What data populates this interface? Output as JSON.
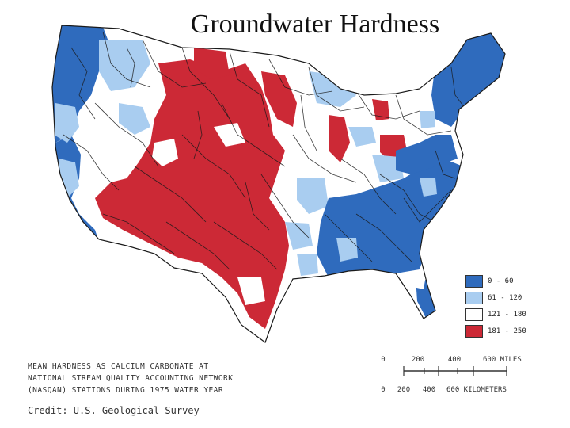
{
  "title": "Groundwater Hardness",
  "legend": {
    "items": [
      {
        "label": "0 - 60",
        "color": "#2f6bbd"
      },
      {
        "label": "61 - 120",
        "color": "#a9cdf0"
      },
      {
        "label": "121 - 180",
        "color": "#ffffff"
      },
      {
        "label": "181 - 250",
        "color": "#cc2936"
      }
    ]
  },
  "caption": {
    "lines": [
      "MEAN HARDNESS AS CALCIUM CARBONATE AT",
      "NATIONAL STREAM QUALITY ACCOUNTING NETWORK",
      "(NASQAN) STATIONS DURING 1975 WATER YEAR"
    ]
  },
  "credit": "Credit: U.S. Geological Survey",
  "scale": {
    "miles_ticks": [
      "0",
      "200",
      "400",
      "600 MILES"
    ],
    "km_ticks": [
      "0",
      "200",
      "400",
      "600 KILOMETERS"
    ]
  },
  "colors": {
    "soft": "#2f6bbd",
    "moderate": "#a9cdf0",
    "hard": "#ffffff",
    "very_hard": "#cc2936",
    "boundary": "#1a1a1a"
  }
}
